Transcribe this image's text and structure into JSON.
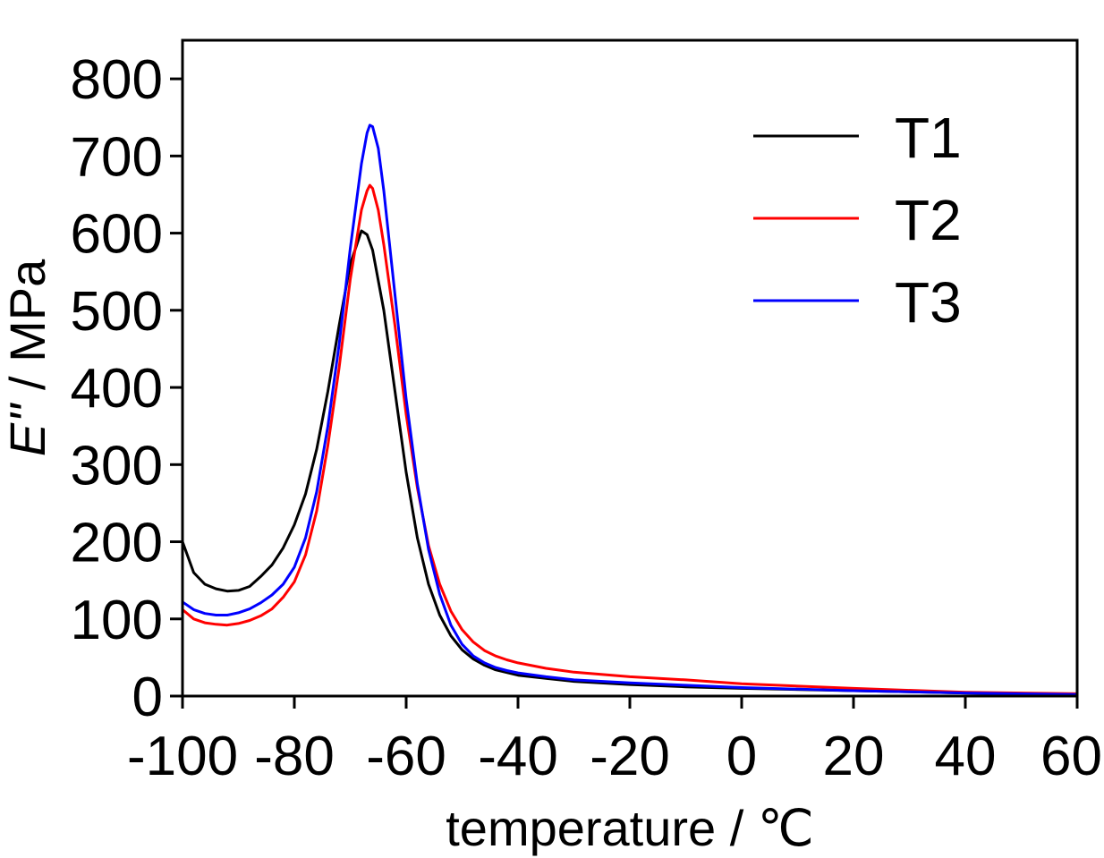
{
  "chart_data": {
    "type": "line",
    "xlabel": "temperature / ℃",
    "ylabel": "E'' / MPa",
    "ylabel_italic": "E''",
    "ylabel_rest": " / MPa",
    "xlim": [
      -100,
      60
    ],
    "ylim": [
      0,
      850
    ],
    "xticks": [
      -100,
      -80,
      -60,
      -40,
      -20,
      0,
      20,
      40,
      60
    ],
    "yticks": [
      0,
      100,
      200,
      300,
      400,
      500,
      600,
      700,
      800
    ],
    "grid": false,
    "legend_position": "top-right",
    "series": [
      {
        "name": "T1",
        "color": "#000000",
        "points": [
          [
            -100,
            200
          ],
          [
            -98,
            160
          ],
          [
            -96,
            145
          ],
          [
            -94,
            139
          ],
          [
            -92,
            136
          ],
          [
            -90,
            137
          ],
          [
            -88,
            142
          ],
          [
            -86,
            155
          ],
          [
            -84,
            170
          ],
          [
            -82,
            192
          ],
          [
            -80,
            222
          ],
          [
            -78,
            262
          ],
          [
            -76,
            320
          ],
          [
            -74,
            395
          ],
          [
            -72,
            480
          ],
          [
            -70,
            560
          ],
          [
            -68,
            603
          ],
          [
            -67,
            598
          ],
          [
            -66,
            578
          ],
          [
            -64,
            500
          ],
          [
            -62,
            395
          ],
          [
            -60,
            290
          ],
          [
            -58,
            205
          ],
          [
            -56,
            145
          ],
          [
            -54,
            105
          ],
          [
            -52,
            78
          ],
          [
            -50,
            60
          ],
          [
            -48,
            48
          ],
          [
            -46,
            40
          ],
          [
            -44,
            34
          ],
          [
            -40,
            27
          ],
          [
            -35,
            23
          ],
          [
            -30,
            19
          ],
          [
            -20,
            15
          ],
          [
            -10,
            12
          ],
          [
            0,
            10
          ],
          [
            20,
            7
          ],
          [
            40,
            4
          ],
          [
            60,
            2
          ]
        ]
      },
      {
        "name": "T2",
        "color": "#ff0000",
        "points": [
          [
            -100,
            112
          ],
          [
            -98,
            100
          ],
          [
            -96,
            95
          ],
          [
            -94,
            93
          ],
          [
            -92,
            92
          ],
          [
            -90,
            94
          ],
          [
            -88,
            98
          ],
          [
            -86,
            104
          ],
          [
            -84,
            113
          ],
          [
            -82,
            128
          ],
          [
            -80,
            148
          ],
          [
            -78,
            183
          ],
          [
            -76,
            240
          ],
          [
            -74,
            325
          ],
          [
            -72,
            425
          ],
          [
            -70,
            540
          ],
          [
            -68,
            630
          ],
          [
            -67,
            655
          ],
          [
            -66.5,
            662
          ],
          [
            -66,
            658
          ],
          [
            -65,
            630
          ],
          [
            -64,
            585
          ],
          [
            -62,
            480
          ],
          [
            -60,
            365
          ],
          [
            -58,
            270
          ],
          [
            -56,
            195
          ],
          [
            -54,
            145
          ],
          [
            -52,
            110
          ],
          [
            -50,
            86
          ],
          [
            -48,
            70
          ],
          [
            -46,
            59
          ],
          [
            -44,
            52
          ],
          [
            -42,
            47
          ],
          [
            -40,
            43
          ],
          [
            -35,
            36
          ],
          [
            -30,
            31
          ],
          [
            -20,
            25
          ],
          [
            -10,
            21
          ],
          [
            0,
            16
          ],
          [
            20,
            10
          ],
          [
            40,
            5
          ],
          [
            60,
            3
          ]
        ]
      },
      {
        "name": "T3",
        "color": "#0000ff",
        "points": [
          [
            -100,
            122
          ],
          [
            -98,
            112
          ],
          [
            -96,
            107
          ],
          [
            -94,
            105
          ],
          [
            -92,
            105
          ],
          [
            -90,
            108
          ],
          [
            -88,
            113
          ],
          [
            -86,
            121
          ],
          [
            -84,
            131
          ],
          [
            -82,
            145
          ],
          [
            -80,
            167
          ],
          [
            -78,
            205
          ],
          [
            -76,
            265
          ],
          [
            -74,
            350
          ],
          [
            -72,
            455
          ],
          [
            -70,
            580
          ],
          [
            -68,
            690
          ],
          [
            -67,
            730
          ],
          [
            -66.5,
            740
          ],
          [
            -66,
            738
          ],
          [
            -65,
            710
          ],
          [
            -64,
            655
          ],
          [
            -62,
            520
          ],
          [
            -60,
            385
          ],
          [
            -58,
            275
          ],
          [
            -56,
            190
          ],
          [
            -54,
            132
          ],
          [
            -52,
            92
          ],
          [
            -50,
            67
          ],
          [
            -48,
            52
          ],
          [
            -46,
            43
          ],
          [
            -44,
            37
          ],
          [
            -42,
            33
          ],
          [
            -40,
            30
          ],
          [
            -35,
            25
          ],
          [
            -30,
            21
          ],
          [
            -20,
            17
          ],
          [
            -10,
            14
          ],
          [
            0,
            11
          ],
          [
            20,
            7
          ],
          [
            40,
            4
          ],
          [
            60,
            2
          ]
        ]
      }
    ]
  }
}
